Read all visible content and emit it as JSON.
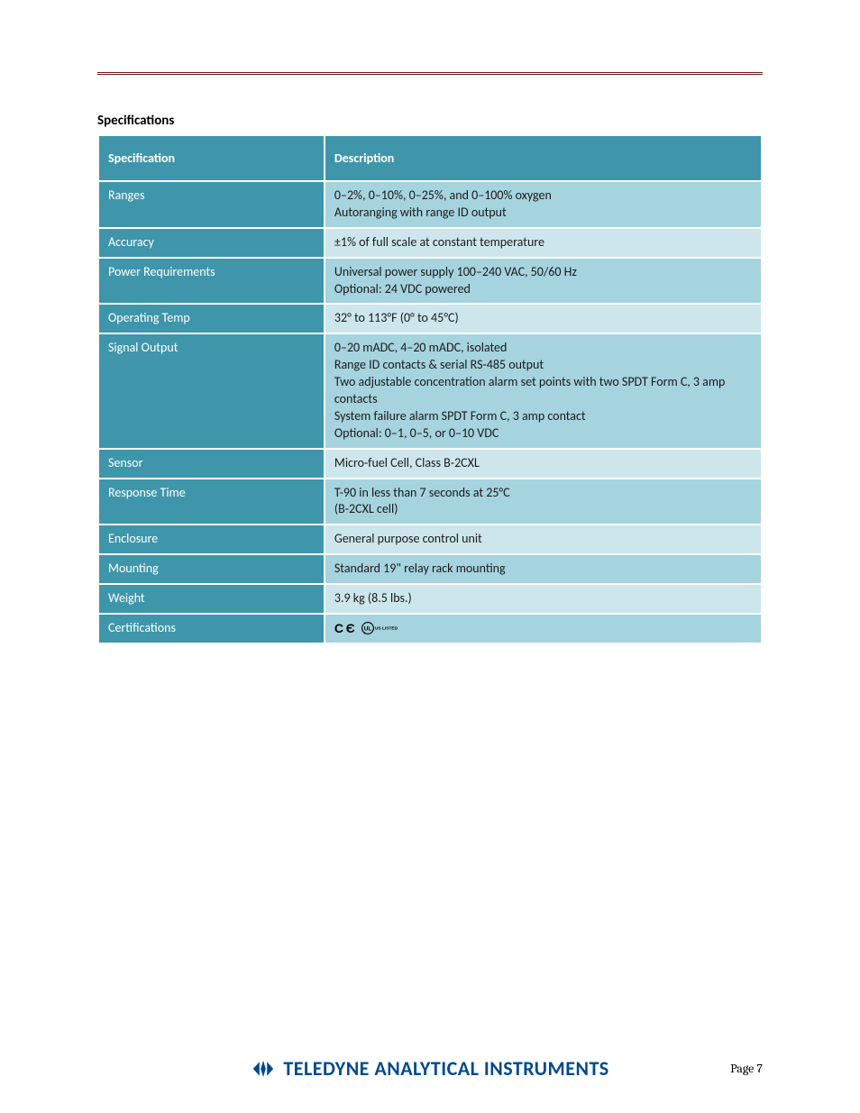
{
  "colors": {
    "rule": "#6b1a1a",
    "header_bg": "#3f96ab",
    "label_bg": "#3f96ab",
    "row_odd": "#a5d3de",
    "row_even": "#cde6ec",
    "brand": "#004a8b"
  },
  "section_title": "Specifications",
  "spec_table": {
    "col1_width": "34%",
    "header": {
      "label": "Specification",
      "value": "Description"
    },
    "rows": [
      {
        "label": "Ranges",
        "value": "0–2%, 0–10%, 0–25%, and 0–100% oxygen\nAutoranging with range ID output"
      },
      {
        "label": "Accuracy",
        "value": "±1% of full scale at constant temperature"
      },
      {
        "label": "Power Requirements",
        "value": "Universal power supply 100–240 VAC, 50/60 Hz\nOptional: 24 VDC powered"
      },
      {
        "label": "Operating Temp",
        "value": "32° to 113°F (0° to 45°C)"
      },
      {
        "label": "Signal Output",
        "value": "0–20 mADC, 4–20 mADC, isolated\nRange ID contacts & serial RS-485 output\nTwo adjustable concentration alarm set points with two SPDT Form C, 3 amp contacts\nSystem failure alarm SPDT Form C, 3 amp contact\nOptional: 0–1, 0–5, or 0–10 VDC"
      },
      {
        "label": "Sensor",
        "value": "Micro-fuel Cell, Class B-2CXL"
      },
      {
        "label": "Response Time",
        "value": "T-90 in less than 7 seconds at 25°C\n(B-2CXL cell)"
      },
      {
        "label": "Enclosure",
        "value": "General purpose control unit"
      },
      {
        "label": "Mounting",
        "value": "Standard 19\" relay rack mounting"
      },
      {
        "label": "Weight",
        "value": "3.9 kg (8.5 lbs.)"
      },
      {
        "label": "Certifications",
        "value": "__CERT__"
      }
    ]
  },
  "footer": {
    "brand": "TELEDYNE ANALYTICAL INSTRUMENTS",
    "page": "Page 7"
  }
}
